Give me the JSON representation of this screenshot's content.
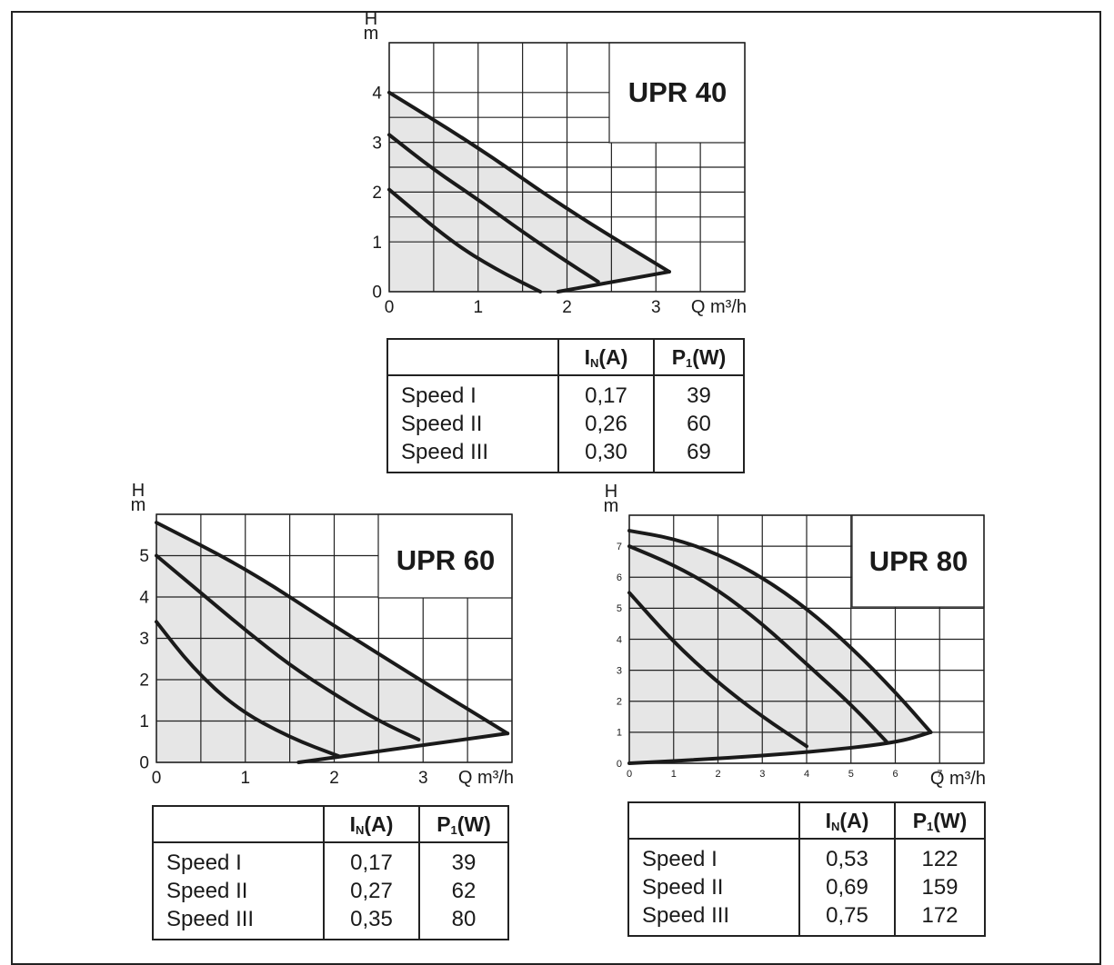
{
  "chart_data": [
    {
      "type": "line",
      "title": "UPR 40",
      "xlabel": "Q m³/h",
      "ylabel": "H m",
      "xlim": [
        0,
        4
      ],
      "ylim": [
        0,
        5
      ],
      "x_ticks": [
        "0",
        "1",
        "2",
        "3"
      ],
      "y_ticks": [
        "0",
        "1",
        "2",
        "3",
        "4"
      ],
      "grid": true,
      "series": [
        {
          "x": [
            0,
            0.7,
            1.2,
            1.7
          ],
          "y": [
            2.05,
            1.0,
            0.45,
            0
          ]
        },
        {
          "x": [
            0,
            0.5,
            1.0,
            1.5,
            2.0,
            2.35
          ],
          "y": [
            3.15,
            2.45,
            1.85,
            1.2,
            0.6,
            0.2
          ]
        },
        {
          "x": [
            0,
            1.0,
            2.0,
            3.15
          ],
          "y": [
            4.0,
            2.9,
            1.65,
            0.4
          ]
        },
        {
          "x": [
            1.9,
            3.15
          ],
          "y": [
            0,
            0.4
          ]
        }
      ]
    },
    {
      "type": "line",
      "title": "UPR 60",
      "xlabel": "Q m³/h",
      "ylabel": "H m",
      "xlim": [
        0,
        4
      ],
      "ylim": [
        0,
        6
      ],
      "x_ticks": [
        "0",
        "1",
        "2",
        "3"
      ],
      "y_ticks": [
        "0",
        "1",
        "2",
        "3",
        "4",
        "5"
      ],
      "grid": true,
      "series": [
        {
          "x": [
            0,
            0.4,
            0.9,
            1.5,
            2.05
          ],
          "y": [
            3.4,
            2.3,
            1.3,
            0.6,
            0.15
          ]
        },
        {
          "x": [
            0,
            0.5,
            1.0,
            1.5,
            2.0,
            2.5,
            2.95
          ],
          "y": [
            5.0,
            4.1,
            3.2,
            2.35,
            1.65,
            1.0,
            0.55
          ]
        },
        {
          "x": [
            0,
            1.0,
            2.0,
            3.0,
            3.95
          ],
          "y": [
            5.8,
            4.7,
            3.3,
            1.95,
            0.7
          ]
        },
        {
          "x": [
            1.6,
            3.95
          ],
          "y": [
            0,
            0.7
          ]
        }
      ]
    },
    {
      "type": "line",
      "title": "UPR 80",
      "xlabel": "Q m³/h",
      "ylabel": "H m",
      "xlim": [
        0,
        8
      ],
      "ylim": [
        0,
        8
      ],
      "x_ticks": [
        "0",
        "1",
        "2",
        "3",
        "4",
        "5",
        "6",
        "7"
      ],
      "y_ticks": [
        "0",
        "1",
        "2",
        "3",
        "4",
        "5",
        "6",
        "7"
      ],
      "grid": true,
      "series": [
        {
          "x": [
            0,
            1.0,
            2.0,
            3.0,
            4.0
          ],
          "y": [
            5.5,
            3.9,
            2.6,
            1.5,
            0.55
          ]
        },
        {
          "x": [
            0,
            1.0,
            2.0,
            3.0,
            4.0,
            5.0,
            5.8
          ],
          "y": [
            7.0,
            6.4,
            5.6,
            4.5,
            3.2,
            1.9,
            0.7
          ]
        },
        {
          "x": [
            0,
            1.0,
            2.0,
            3.0,
            4.0,
            5.0,
            6.0,
            6.8
          ],
          "y": [
            7.5,
            7.25,
            6.75,
            6.0,
            5.0,
            3.75,
            2.3,
            1.0
          ]
        },
        {
          "x": [
            0,
            2.0,
            4.0,
            6.0,
            6.8
          ],
          "y": [
            0,
            0.15,
            0.35,
            0.65,
            1.0
          ]
        }
      ]
    }
  ],
  "tables": [
    {
      "headers": [
        "",
        "IN(A)",
        "P1(W)"
      ],
      "header_main": [
        "I",
        "(A)",
        "P",
        "(W)"
      ],
      "header_sub": [
        "N",
        "1"
      ],
      "rows": [
        [
          "Speed I",
          "0,17",
          "39"
        ],
        [
          "Speed II",
          "0,26",
          "60"
        ],
        [
          "Speed III",
          "0,30",
          "69"
        ]
      ]
    },
    {
      "headers": [
        "",
        "IN(A)",
        "P1(W)"
      ],
      "header_main": [
        "I",
        "(A)",
        "P",
        "(W)"
      ],
      "header_sub": [
        "N",
        "1"
      ],
      "rows": [
        [
          "Speed I",
          "0,17",
          "39"
        ],
        [
          "Speed II",
          "0,27",
          "62"
        ],
        [
          "Speed III",
          "0,35",
          "80"
        ]
      ]
    },
    {
      "headers": [
        "",
        "IN(A)",
        "P1(W)"
      ],
      "header_main": [
        "I",
        "(A)",
        "P",
        "(W)"
      ],
      "header_sub": [
        "N",
        "1"
      ],
      "rows": [
        [
          "Speed I",
          "0,53",
          "122"
        ],
        [
          "Speed II",
          "0,69",
          "159"
        ],
        [
          "Speed III",
          "0,75",
          "172"
        ]
      ]
    }
  ],
  "colors": {
    "line": "#1a1a1a",
    "fill": "#e6e6e6",
    "grid": "#222222"
  }
}
